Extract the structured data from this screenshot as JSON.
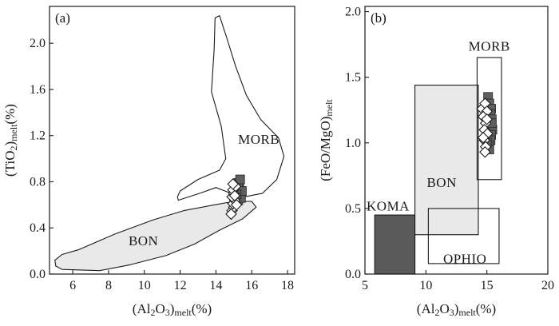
{
  "chart_data": [
    {
      "panel": "(a)",
      "type": "scatter",
      "xlabel": "(Al2O3)melt(%)",
      "ylabel": "(TiO2)melt(%)",
      "xlim": [
        4.7,
        18.4
      ],
      "ylim": [
        0.0,
        2.32
      ],
      "xticks": [
        6,
        8,
        10,
        12,
        14,
        16,
        18
      ],
      "yticks": [
        0.0,
        0.4,
        0.8,
        1.2,
        1.6,
        2.0
      ],
      "xtick_labels": [
        "6",
        "8",
        "10",
        "12",
        "14",
        "16",
        "18"
      ],
      "ytick_labels": [
        "0.0",
        "0.4",
        "0.8",
        "1.2",
        "1.6",
        "2.0"
      ],
      "regions": [
        {
          "label": "MORB",
          "fill": "none",
          "outline": [
            [
              11.9,
              0.64
            ],
            [
              13.1,
              0.7
            ],
            [
              14.0,
              0.75
            ],
            [
              14.5,
              0.72
            ],
            [
              15.2,
              0.68
            ],
            [
              15.6,
              0.67
            ],
            [
              16.6,
              0.7
            ],
            [
              17.4,
              0.82
            ],
            [
              17.8,
              1.02
            ],
            [
              17.5,
              1.18
            ],
            [
              16.5,
              1.34
            ],
            [
              15.7,
              1.55
            ],
            [
              15.1,
              1.8
            ],
            [
              14.6,
              2.05
            ],
            [
              14.2,
              2.24
            ],
            [
              13.95,
              2.22
            ],
            [
              13.9,
              1.95
            ],
            [
              13.75,
              1.58
            ],
            [
              14.3,
              1.28
            ],
            [
              14.55,
              1.0
            ],
            [
              14.2,
              0.9
            ],
            [
              13.0,
              0.82
            ],
            [
              12.0,
              0.72
            ],
            [
              11.85,
              0.67
            ]
          ],
          "label_at": [
            16.4,
            1.17
          ]
        },
        {
          "label": "BON",
          "fill": "#e9e9e9",
          "outline": [
            [
              5.05,
              0.07
            ],
            [
              5.4,
              0.04
            ],
            [
              7.5,
              0.03
            ],
            [
              9.2,
              0.08
            ],
            [
              11.2,
              0.16
            ],
            [
              12.8,
              0.26
            ],
            [
              14.2,
              0.38
            ],
            [
              15.5,
              0.48
            ],
            [
              16.25,
              0.58
            ],
            [
              16.0,
              0.63
            ],
            [
              15.0,
              0.63
            ],
            [
              13.9,
              0.6
            ],
            [
              12.2,
              0.55
            ],
            [
              10.5,
              0.47
            ],
            [
              8.4,
              0.35
            ],
            [
              6.3,
              0.21
            ],
            [
              5.4,
              0.17
            ],
            [
              5.0,
              0.12
            ]
          ],
          "label_at": [
            9.95,
            0.29
          ]
        }
      ],
      "series": [
        {
          "marker": "square",
          "color": "#606060",
          "points": [
            [
              15.25,
              0.64
            ],
            [
              15.3,
              0.67
            ],
            [
              15.35,
              0.7
            ],
            [
              15.2,
              0.73
            ],
            [
              15.3,
              0.76
            ],
            [
              15.25,
              0.79
            ],
            [
              15.35,
              0.82
            ],
            [
              15.4,
              0.66
            ],
            [
              15.45,
              0.72
            ],
            [
              15.15,
              0.69
            ]
          ]
        },
        {
          "marker": "diamond",
          "color": "#ffffff",
          "points": [
            [
              14.9,
              0.55
            ],
            [
              15.0,
              0.58
            ],
            [
              14.95,
              0.61
            ],
            [
              15.05,
              0.64
            ],
            [
              14.9,
              0.67
            ],
            [
              15.0,
              0.7
            ],
            [
              14.95,
              0.73
            ],
            [
              15.1,
              0.76
            ],
            [
              14.85,
              0.52
            ],
            [
              15.15,
              0.6
            ],
            [
              15.05,
              0.68
            ],
            [
              14.95,
              0.78
            ]
          ]
        }
      ]
    },
    {
      "panel": "(b)",
      "type": "scatter",
      "xlabel": "(Al2O3)melt(%)",
      "ylabel": "(FeO/MgO)melt",
      "xlim": [
        5.0,
        20.0
      ],
      "ylim": [
        0.0,
        2.04
      ],
      "xticks": [
        5,
        10,
        15,
        20
      ],
      "yticks": [
        0.0,
        0.5,
        1.0,
        1.5,
        2.0
      ],
      "xtick_labels": [
        "5",
        "10",
        "15",
        "20"
      ],
      "ytick_labels": [
        "0.0",
        "0.5",
        "1.0",
        "1.5",
        "2.0"
      ],
      "regions": [
        {
          "label": "KOMA",
          "fill": "#5a5a5a",
          "x": [
            5.8,
            9.1
          ],
          "y": [
            0.0,
            0.45
          ],
          "label_at": [
            6.9,
            0.52
          ]
        },
        {
          "label": "BON",
          "fill": "#e9e9e9",
          "x": [
            9.1,
            14.3
          ],
          "y": [
            0.3,
            1.44
          ],
          "label_at": [
            11.3,
            0.7
          ]
        },
        {
          "label": "MORB",
          "fill": "none",
          "x": [
            14.2,
            16.2
          ],
          "y": [
            0.72,
            1.65
          ],
          "label_at": [
            15.2,
            1.74
          ]
        },
        {
          "label": "OPHIO",
          "fill": "none",
          "x": [
            10.2,
            16.0
          ],
          "y": [
            0.08,
            0.5
          ],
          "label_at": [
            13.2,
            0.12
          ]
        }
      ],
      "series": [
        {
          "marker": "square",
          "color": "#606060",
          "points": [
            [
              15.1,
              1.35
            ],
            [
              15.2,
              1.3
            ],
            [
              15.35,
              1.26
            ],
            [
              15.3,
              1.22
            ],
            [
              15.4,
              1.18
            ],
            [
              15.25,
              1.14
            ],
            [
              15.45,
              1.1
            ],
            [
              15.35,
              1.06
            ],
            [
              15.3,
              1.02
            ],
            [
              15.15,
              0.98
            ],
            [
              15.2,
              0.95
            ],
            [
              15.4,
              1.15
            ],
            [
              15.0,
              1.0
            ]
          ]
        },
        {
          "marker": "diamond",
          "color": "#ffffff",
          "points": [
            [
              14.6,
              1.26
            ],
            [
              14.85,
              1.3
            ],
            [
              15.0,
              1.24
            ],
            [
              14.7,
              1.2
            ],
            [
              14.9,
              1.15
            ],
            [
              14.8,
              1.1
            ],
            [
              15.05,
              1.07
            ],
            [
              14.8,
              1.02
            ],
            [
              14.9,
              0.97
            ],
            [
              14.85,
              0.93
            ],
            [
              15.0,
              1.18
            ],
            [
              14.7,
              1.04
            ]
          ]
        }
      ]
    }
  ]
}
